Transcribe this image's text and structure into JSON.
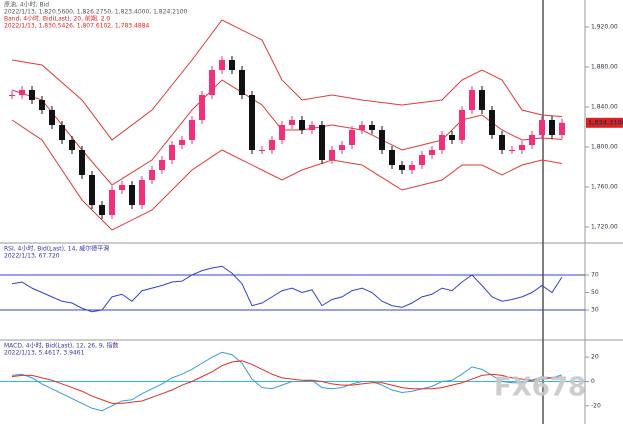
{
  "chart_data": [
    {
      "type": "candlestick",
      "title": "原油, 4小时, Bid",
      "subtitle": "2022/1/13, 1,820.5600, 1,826.2750, 1,823.4000, 1,824.2100",
      "indicator_title": "Band, 4小时, Bid(Last), 20, 前期, 2.0",
      "indicator_subtitle": "2022/1/13, 1,830.5426, 1,807.6102, 1,783.4884",
      "close": [
        1852,
        1857,
        1847,
        1837,
        1822,
        1807,
        1797,
        1772,
        1742,
        1732,
        1757,
        1762,
        1742,
        1767,
        1777,
        1787,
        1802,
        1807,
        1827,
        1852,
        1877,
        1887,
        1877,
        1852,
        1797,
        1797,
        1807,
        1822,
        1827,
        1817,
        1822,
        1787,
        1797,
        1802,
        1817,
        1822,
        1817,
        1797,
        1782,
        1777,
        1782,
        1792,
        1797,
        1812,
        1807,
        1837,
        1857,
        1837,
        1812,
        1797,
        1797,
        1802,
        1812,
        1827,
        1812,
        1824.21
      ],
      "up_color": "#f0307a",
      "down_color": "#111111",
      "band_x": [
        0,
        3,
        7,
        10,
        14,
        18,
        21,
        25,
        27,
        29,
        32,
        35,
        39,
        43,
        45,
        47,
        49,
        51,
        53,
        55
      ],
      "series": [
        {
          "name": "upper",
          "color": "#e03a3a",
          "values": [
            1887,
            1882,
            1847,
            1807,
            1837,
            1887,
            1927,
            1907,
            1867,
            1847,
            1852,
            1847,
            1842,
            1847,
            1867,
            1877,
            1867,
            1837,
            1832,
            1830.5426
          ]
        },
        {
          "name": "middle",
          "color": "#e03a3a",
          "values": [
            1857,
            1847,
            1797,
            1762,
            1787,
            1837,
            1867,
            1842,
            1817,
            1817,
            1822,
            1817,
            1797,
            1807,
            1827,
            1832,
            1817,
            1807,
            1809,
            1807.6102
          ]
        },
        {
          "name": "lower",
          "color": "#e03a3a",
          "values": [
            1827,
            1807,
            1747,
            1717,
            1737,
            1777,
            1797,
            1777,
            1767,
            1777,
            1787,
            1782,
            1757,
            1767,
            1782,
            1782,
            1772,
            1782,
            1787,
            1783.4884
          ]
        }
      ],
      "current_price": {
        "value": 1824.21,
        "label": "1,824.2100"
      },
      "ylim": [
        1705,
        1937
      ],
      "yticks": [
        {
          "value": 1720,
          "label": "1,720.00"
        },
        {
          "value": 1760,
          "label": "1,760.00"
        },
        {
          "value": 1800,
          "label": "1,800.00"
        },
        {
          "value": 1840,
          "label": "1,840.00"
        },
        {
          "value": 1880,
          "label": "1,880.00"
        },
        {
          "value": 1920,
          "label": "1,920.00"
        }
      ]
    },
    {
      "type": "line",
      "title": "RSI, 4小时, Bid(Last), 14, 威尔德平滑",
      "subtitle": "2022/1/13, 67.720",
      "series": [
        {
          "name": "RSI",
          "color": "#3344cc",
          "values": [
            60,
            62,
            55,
            50,
            45,
            40,
            38,
            32,
            28,
            30,
            45,
            48,
            40,
            52,
            55,
            58,
            62,
            63,
            70,
            75,
            78,
            80,
            72,
            60,
            35,
            38,
            45,
            52,
            55,
            50,
            53,
            35,
            42,
            45,
            52,
            55,
            50,
            40,
            35,
            33,
            38,
            45,
            48,
            55,
            52,
            62,
            70,
            58,
            45,
            40,
            42,
            45,
            50,
            58,
            50,
            67.72
          ]
        }
      ],
      "levels": [
        70,
        30
      ],
      "level_color": "#3344cc",
      "ylim": [
        0,
        100
      ],
      "yticks": [
        30,
        50,
        70
      ]
    },
    {
      "type": "line",
      "title": "MACD, 4小时, Bid(Last), 12, 26, 9, 指数",
      "subtitle": "2022/1/13, 5.4617, 3.9461",
      "series": [
        {
          "name": "MACD",
          "color": "#3a9be0",
          "values": [
            5,
            6,
            3,
            -2,
            -6,
            -10,
            -14,
            -18,
            -22,
            -24,
            -20,
            -16,
            -15,
            -10,
            -6,
            -2,
            3,
            6,
            10,
            15,
            20,
            24,
            22,
            15,
            2,
            -5,
            -6,
            -3,
            0,
            0,
            1,
            -5,
            -6,
            -5,
            -2,
            0,
            0,
            -3,
            -7,
            -9,
            -8,
            -6,
            -4,
            0,
            1,
            6,
            12,
            10,
            5,
            0,
            -1,
            -1,
            1,
            4,
            3,
            5.4617
          ]
        },
        {
          "name": "Signal",
          "color": "#e0302a",
          "values": [
            4,
            5,
            5,
            3,
            1,
            -2,
            -5,
            -8,
            -12,
            -15,
            -18,
            -18,
            -17,
            -16,
            -13,
            -10,
            -7,
            -3,
            0,
            4,
            8,
            13,
            16,
            17,
            14,
            10,
            6,
            3,
            2,
            1,
            1,
            0,
            -2,
            -3,
            -3,
            -2,
            -1,
            -1,
            -3,
            -5,
            -6,
            -6,
            -6,
            -5,
            -3,
            -1,
            2,
            5,
            6,
            5,
            3,
            2,
            1,
            2,
            3,
            3.9461
          ]
        }
      ],
      "levels": [
        0
      ],
      "level_color": "#33bbdd",
      "ylim": [
        -30,
        30
      ],
      "yticks": [
        -20,
        0,
        20
      ]
    }
  ],
  "watermark": "FX678"
}
